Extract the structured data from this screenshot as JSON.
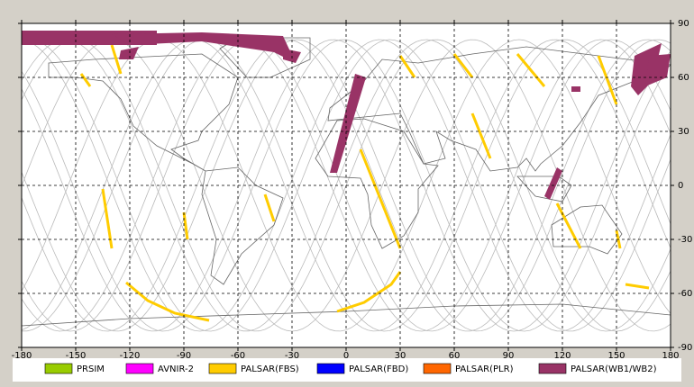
{
  "map": {
    "xlim": [
      -180,
      180
    ],
    "ylim": [
      -90,
      90
    ],
    "xticks": [
      -180,
      -150,
      -120,
      -90,
      -60,
      -30,
      0,
      30,
      60,
      90,
      120,
      150,
      180
    ],
    "yticks": [
      -90,
      -60,
      -30,
      0,
      30,
      60,
      90
    ],
    "legend": [
      {
        "name": "PRSIM",
        "color": "#99cc00"
      },
      {
        "name": "AVNIR-2",
        "color": "#ff00ff"
      },
      {
        "name": "PALSAR(FBS)",
        "color": "#ffcc00"
      },
      {
        "name": "PALSAR(FBD)",
        "color": "#0000ff"
      },
      {
        "name": "PALSAR(PLR)",
        "color": "#ff6600"
      },
      {
        "name": "PALSAR(WB1/WB2)",
        "color": "#993366"
      }
    ]
  }
}
